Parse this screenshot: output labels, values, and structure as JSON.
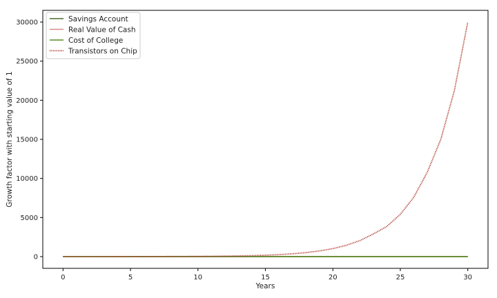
{
  "chart_data": {
    "type": "line",
    "title": "",
    "xlabel": "Years",
    "ylabel": "Growth factor with starting value of 1",
    "xlim": [
      -1.5,
      31.5
    ],
    "ylim": [
      -1500,
      31500
    ],
    "xticks": [
      0,
      5,
      10,
      15,
      20,
      25,
      30
    ],
    "yticks": [
      0,
      5000,
      10000,
      15000,
      20000,
      25000,
      30000
    ],
    "grid": false,
    "legend_position": "top-left",
    "x": [
      0,
      1,
      2,
      3,
      4,
      5,
      6,
      7,
      8,
      9,
      10,
      11,
      12,
      13,
      14,
      15,
      16,
      17,
      18,
      19,
      20,
      21,
      22,
      23,
      24,
      25,
      26,
      27,
      28,
      29,
      30
    ],
    "series": [
      {
        "name": "Savings Account",
        "color": "#4a6a2f",
        "style": "solid",
        "values": [
          1.0,
          1.02,
          1.04,
          1.06,
          1.08,
          1.1,
          1.13,
          1.15,
          1.17,
          1.2,
          1.22,
          1.24,
          1.27,
          1.29,
          1.32,
          1.35,
          1.37,
          1.4,
          1.43,
          1.46,
          1.49,
          1.52,
          1.55,
          1.58,
          1.61,
          1.64,
          1.67,
          1.71,
          1.74,
          1.78,
          1.81
        ]
      },
      {
        "name": "Real Value of Cash",
        "color": "#d98a8a",
        "style": "solid",
        "values": [
          1.0,
          0.97,
          0.94,
          0.91,
          0.89,
          0.86,
          0.83,
          0.81,
          0.78,
          0.76,
          0.74,
          0.72,
          0.69,
          0.67,
          0.65,
          0.63,
          0.61,
          0.6,
          0.58,
          0.56,
          0.54,
          0.53,
          0.51,
          0.5,
          0.48,
          0.47,
          0.45,
          0.44,
          0.43,
          0.41,
          0.4
        ]
      },
      {
        "name": "Cost of College",
        "color": "#5a8a2a",
        "style": "solid",
        "values": [
          1.0,
          1.05,
          1.1,
          1.16,
          1.22,
          1.28,
          1.34,
          1.41,
          1.48,
          1.55,
          1.63,
          1.71,
          1.8,
          1.89,
          1.98,
          2.08,
          2.18,
          2.29,
          2.41,
          2.53,
          2.65,
          2.79,
          2.93,
          3.07,
          3.23,
          3.39,
          3.56,
          3.73,
          3.92,
          4.12,
          4.32
        ]
      },
      {
        "name": "Transistors on Chip",
        "color": "#b03a2e",
        "style": "dotted",
        "values": [
          1,
          1.41,
          2,
          2.83,
          4,
          5.66,
          8,
          11.3,
          16,
          22.6,
          32,
          45.3,
          64,
          90.5,
          128,
          181,
          256,
          362,
          512,
          724,
          1024,
          1448,
          2048,
          2896,
          3862,
          5408,
          7600,
          10800,
          15000,
          21200,
          30000
        ]
      }
    ]
  }
}
